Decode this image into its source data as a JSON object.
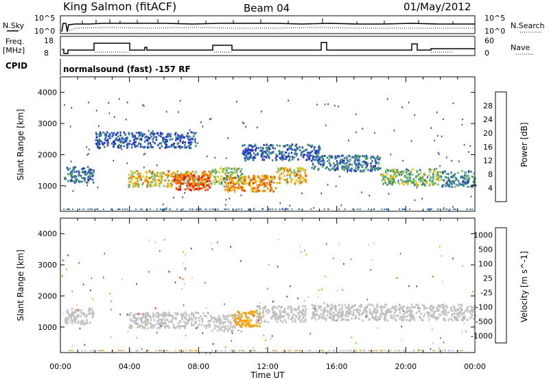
{
  "header": {
    "station": "King Salmon (fitACF)",
    "beam": "Beam 04",
    "date": "01/May/2012"
  },
  "strip_labels": {
    "nsky": "N.Sky",
    "nsky_tick_top": "10^5",
    "nsky_tick_bottom": "10^0",
    "nsearch": "N.Search",
    "nsearch_tick_top": "10^5",
    "nsearch_tick_bottom": "10^0",
    "freq_line1": "Freq.",
    "freq_line2": "[MHz]",
    "freq_tick_top": "18",
    "freq_tick_bottom": "8",
    "nave": "Nave",
    "nave_tick_top": "60",
    "nave_tick_bottom": "0",
    "cpid": "CPID",
    "cpid_text": "normalsound (fast) -157 RF"
  },
  "colors": {
    "power_scale": [
      "#2233cc",
      "#2f6fb8",
      "#3f8f6c",
      "#6cc06c",
      "#f0c000",
      "#f08000",
      "#ff4000",
      "#ff0000"
    ],
    "velocity_scale": [
      "#ff0000",
      "#ff6000",
      "#ffa000",
      "#c0c0c0",
      "#c0c0c0",
      "#66cc33",
      "#2f8f4f",
      "#2233cc"
    ]
  },
  "chart_data": [
    {
      "type": "heatmap",
      "name": "power",
      "ylabel": "Slant Range [km]",
      "xlabel": "Time UT",
      "x_ticks": [
        "00:00",
        "04:00",
        "08:00",
        "12:00",
        "16:00",
        "20:00",
        "00:00"
      ],
      "xlim_hours": [
        0,
        24
      ],
      "y_ticks": [
        1000,
        2000,
        3000,
        4000
      ],
      "ylim": [
        180,
        4500
      ],
      "colorbar": {
        "label": "Power [dB]",
        "ticks": [
          "4",
          "8",
          "12",
          "16",
          "20",
          "24",
          "28"
        ],
        "range": [
          0,
          30
        ]
      },
      "echo_bands": [
        {
          "t_start": 0.2,
          "t_end": 1.9,
          "range_km": 1380,
          "value": 6
        },
        {
          "t_start": 3.9,
          "t_end": 8.7,
          "range_km": 1250,
          "value": 18
        },
        {
          "t_start": 6.5,
          "t_end": 8.6,
          "range_km": 1150,
          "value": 24
        },
        {
          "t_start": 8.7,
          "t_end": 10.5,
          "range_km": 1350,
          "value": 14
        },
        {
          "t_start": 9.5,
          "t_end": 12.5,
          "range_km": 1100,
          "value": 20
        },
        {
          "t_start": 12.5,
          "t_end": 14.2,
          "range_km": 1350,
          "value": 18
        },
        {
          "t_start": 14.5,
          "t_end": 18.5,
          "range_km": 1750,
          "value": 7
        },
        {
          "t_start": 18.5,
          "t_end": 22.0,
          "range_km": 1300,
          "value": 12
        },
        {
          "t_start": 22.0,
          "t_end": 24.0,
          "range_km": 1250,
          "value": 8
        },
        {
          "t_start": 2.0,
          "t_end": 7.8,
          "range_km": 2500,
          "value": 4
        },
        {
          "t_start": 10.5,
          "t_end": 15.0,
          "range_km": 2100,
          "value": 5
        }
      ]
    },
    {
      "type": "heatmap",
      "name": "velocity",
      "ylabel": "Slant Range [km]",
      "xlabel": "Time UT",
      "x_ticks": [
        "00:00",
        "04:00",
        "08:00",
        "12:00",
        "16:00",
        "20:00",
        "00:00"
      ],
      "xlim_hours": [
        0,
        24
      ],
      "y_ticks": [
        1000,
        2000,
        3000,
        4000
      ],
      "ylim": [
        180,
        4500
      ],
      "colorbar": {
        "label": "Velocity [m s^-1]",
        "ticks": [
          "1000",
          "500",
          "100",
          "25",
          "-25",
          "-100",
          "-500",
          "-1000"
        ],
        "range": [
          -1000,
          1000
        ]
      },
      "echo_bands": [
        {
          "t_start": 0.2,
          "t_end": 1.9,
          "range_km": 1380,
          "value": 0
        },
        {
          "t_start": 3.9,
          "t_end": 8.7,
          "range_km": 1250,
          "value": 0
        },
        {
          "t_start": 8.7,
          "t_end": 10.5,
          "range_km": 1150,
          "value": 10
        },
        {
          "t_start": 10.0,
          "t_end": 11.5,
          "range_km": 1300,
          "value": -300
        },
        {
          "t_start": 11.3,
          "t_end": 14.2,
          "range_km": 1450,
          "value": 200
        },
        {
          "t_start": 14.5,
          "t_end": 24.0,
          "range_km": 1500,
          "value": 0
        }
      ]
    }
  ]
}
